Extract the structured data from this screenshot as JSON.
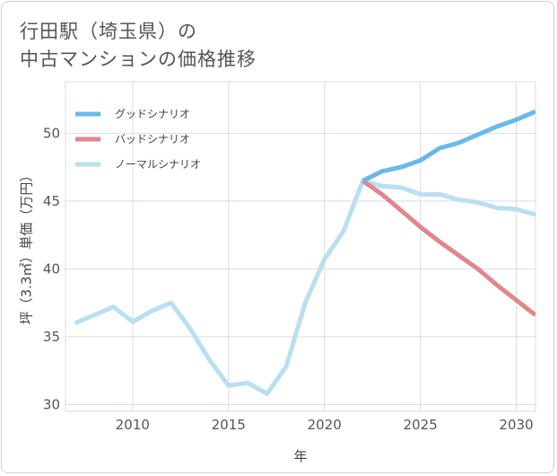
{
  "chart_title": {
    "line1": "行田駅（埼玉県）の",
    "line2": "中古マンションの価格推移"
  },
  "chart_data": {
    "type": "line",
    "xlabel": "年",
    "ylabel": "坪（3.3㎡）単価（万円）",
    "xlim": [
      2006.5,
      2031
    ],
    "ylim": [
      29.5,
      53.8
    ],
    "xticks": [
      2010,
      2015,
      2020,
      2025,
      2030
    ],
    "yticks": [
      30,
      35,
      40,
      45,
      50
    ],
    "grid": true,
    "legend_position": "top-left",
    "series": [
      {
        "name": "グッドシナリオ",
        "color": "#6bb8ea",
        "x": [
          2022,
          2023,
          2024,
          2025,
          2026,
          2027,
          2028,
          2029,
          2030,
          2031
        ],
        "y": [
          46.5,
          47.2,
          47.5,
          48.0,
          48.9,
          49.3,
          49.9,
          50.5,
          51.0,
          51.6
        ]
      },
      {
        "name": "バッドシナリオ",
        "color": "#e0868d",
        "x": [
          2022,
          2023,
          2024,
          2025,
          2026,
          2027,
          2028,
          2029,
          2030,
          2031
        ],
        "y": [
          46.5,
          45.5,
          44.3,
          43.1,
          42.0,
          41.0,
          40.0,
          38.8,
          37.7,
          36.6
        ]
      },
      {
        "name": "ノーマルシナリオ",
        "color": "#b9dff0",
        "x": [
          2007,
          2008,
          2009,
          2010,
          2011,
          2012,
          2013,
          2014,
          2015,
          2016,
          2017,
          2018,
          2019,
          2020,
          2021,
          2022,
          2023,
          2024,
          2025,
          2026,
          2027,
          2028,
          2029,
          2030,
          2031
        ],
        "y": [
          36.0,
          36.6,
          37.2,
          36.1,
          36.9,
          37.5,
          35.6,
          33.3,
          31.4,
          31.6,
          30.8,
          32.8,
          37.5,
          40.7,
          42.8,
          46.5,
          46.1,
          46.0,
          45.5,
          45.5,
          45.1,
          44.9,
          44.5,
          44.4,
          44.0
        ]
      }
    ]
  }
}
